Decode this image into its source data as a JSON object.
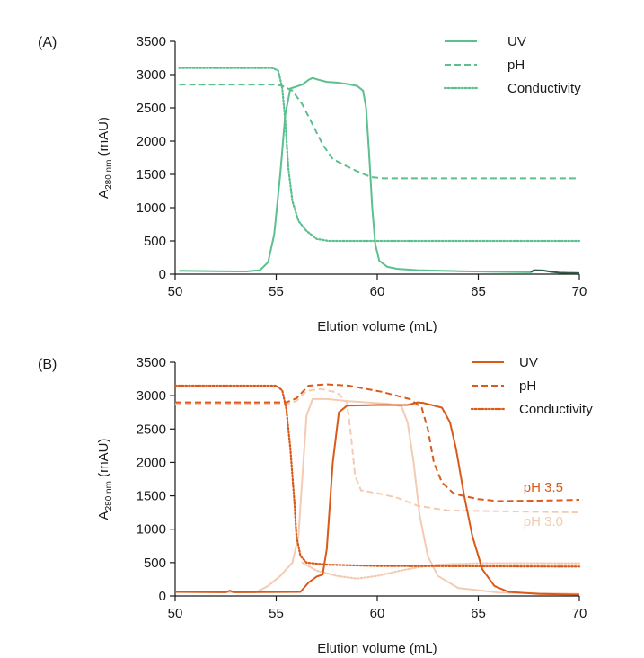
{
  "chart_data": [
    {
      "panel_label": "(A)",
      "type": "line",
      "xlabel": "Elution volume (mL)",
      "ylabel_main": "A",
      "ylabel_sub": "280 nm",
      "ylabel_unit": " (mAU)",
      "xlim": [
        50,
        70
      ],
      "ylim": [
        0,
        3500
      ],
      "xticks": [
        50,
        55,
        60,
        65,
        70
      ],
      "yticks": [
        0,
        500,
        1000,
        1500,
        2000,
        2500,
        3000,
        3500
      ],
      "grid": false,
      "legend": {
        "placement": "top-right",
        "entries": [
          {
            "label": "UV",
            "style": "solid"
          },
          {
            "label": "pH",
            "style": "dashed"
          },
          {
            "label": "Conductivity",
            "style": "dotted"
          }
        ]
      },
      "colors": {
        "main": "#5bbf8e",
        "tail": "#2f5a44"
      },
      "series": [
        {
          "legend": "UV",
          "style": "solid",
          "color": "#5bbf8e",
          "points": [
            [
              50.2,
              50
            ],
            [
              52,
              45
            ],
            [
              53.5,
              40
            ],
            [
              54.2,
              60
            ],
            [
              54.6,
              180
            ],
            [
              54.9,
              600
            ],
            [
              55.2,
              1500
            ],
            [
              55.45,
              2400
            ],
            [
              55.7,
              2790
            ],
            [
              56,
              2820
            ],
            [
              56.3,
              2850
            ],
            [
              56.6,
              2920
            ],
            [
              56.8,
              2950
            ],
            [
              57,
              2930
            ],
            [
              57.5,
              2890
            ],
            [
              58,
              2880
            ],
            [
              58.5,
              2860
            ],
            [
              59,
              2830
            ],
            [
              59.3,
              2760
            ],
            [
              59.45,
              2500
            ],
            [
              59.6,
              1800
            ],
            [
              59.75,
              1000
            ],
            [
              59.9,
              450
            ],
            [
              60.1,
              200
            ],
            [
              60.5,
              110
            ],
            [
              61,
              80
            ],
            [
              62,
              60
            ],
            [
              64,
              45
            ],
            [
              66,
              35
            ],
            [
              67.6,
              28
            ]
          ]
        },
        {
          "legend": "UV",
          "style": "solid",
          "color": "#2f5a44",
          "points": [
            [
              67.6,
              28
            ],
            [
              67.75,
              60
            ],
            [
              68.2,
              55
            ],
            [
              68.6,
              35
            ],
            [
              69,
              22
            ],
            [
              70,
              15
            ]
          ]
        },
        {
          "legend": "pH",
          "style": "dashed",
          "color": "#5bbf8e",
          "points": [
            [
              50.2,
              2850
            ],
            [
              55,
              2850
            ],
            [
              55.3,
              2830
            ],
            [
              55.8,
              2760
            ],
            [
              56.3,
              2550
            ],
            [
              56.8,
              2250
            ],
            [
              57.3,
              1950
            ],
            [
              57.8,
              1730
            ],
            [
              58.5,
              1620
            ],
            [
              59.2,
              1520
            ],
            [
              59.7,
              1460
            ],
            [
              60.3,
              1440
            ],
            [
              70,
              1440
            ]
          ]
        },
        {
          "legend": "Conductivity",
          "style": "dotted",
          "color": "#5bbf8e",
          "points": [
            [
              50.2,
              3100
            ],
            [
              54.8,
              3100
            ],
            [
              55.1,
              3060
            ],
            [
              55.3,
              2800
            ],
            [
              55.45,
              2300
            ],
            [
              55.6,
              1600
            ],
            [
              55.8,
              1100
            ],
            [
              56.1,
              800
            ],
            [
              56.5,
              650
            ],
            [
              57,
              530
            ],
            [
              57.6,
              500
            ],
            [
              70,
              500
            ]
          ]
        }
      ]
    },
    {
      "panel_label": "(B)",
      "type": "line",
      "xlabel": "Elution volume (mL)",
      "ylabel_main": "A",
      "ylabel_sub": "280 nm",
      "ylabel_unit": " (mAU)",
      "xlim": [
        50,
        70
      ],
      "ylim": [
        0,
        3500
      ],
      "xticks": [
        50,
        55,
        60,
        65,
        70
      ],
      "yticks": [
        0,
        500,
        1000,
        1500,
        2000,
        2500,
        3000,
        3500
      ],
      "grid": false,
      "legend": {
        "placement": "top-right",
        "entries": [
          {
            "label": "UV",
            "style": "solid"
          },
          {
            "label": "pH",
            "style": "dashed"
          },
          {
            "label": "Conductivity",
            "style": "dotted"
          }
        ]
      },
      "colors": {
        "dark": "#d95a1a",
        "light": "#f4cbb2"
      },
      "annotations": [
        {
          "text": "pH 3.5",
          "x": 69.2,
          "y": 1560,
          "color": "#d95a1a"
        },
        {
          "text": "pH 3.0",
          "x": 69.2,
          "y": 1050,
          "color": "#f4cbb2"
        }
      ],
      "series": [
        {
          "legend": "UV",
          "style": "solid",
          "color": "#f4cbb2",
          "points": [
            [
              50,
              60
            ],
            [
              54,
              55
            ],
            [
              54.6,
              150
            ],
            [
              55.2,
              300
            ],
            [
              55.8,
              500
            ],
            [
              56.1,
              900
            ],
            [
              56.3,
              1800
            ],
            [
              56.5,
              2700
            ],
            [
              56.8,
              2950
            ],
            [
              57.5,
              2950
            ],
            [
              58.5,
              2920
            ],
            [
              60.5,
              2880
            ],
            [
              61.2,
              2840
            ],
            [
              61.5,
              2600
            ],
            [
              61.8,
              2000
            ],
            [
              62.1,
              1200
            ],
            [
              62.5,
              600
            ],
            [
              63,
              300
            ],
            [
              64,
              120
            ],
            [
              66,
              50
            ],
            [
              70,
              30
            ]
          ]
        },
        {
          "legend": "pH",
          "style": "dashed",
          "color": "#f4cbb2",
          "points": [
            [
              50,
              2880
            ],
            [
              55.6,
              2880
            ],
            [
              56,
              2920
            ],
            [
              56.5,
              3070
            ],
            [
              57.2,
              3100
            ],
            [
              58,
              3050
            ],
            [
              58.5,
              2900
            ],
            [
              58.7,
              2400
            ],
            [
              58.9,
              1800
            ],
            [
              59.2,
              1580
            ],
            [
              60,
              1540
            ],
            [
              61,
              1470
            ],
            [
              62,
              1350
            ],
            [
              63.5,
              1280
            ],
            [
              70,
              1250
            ]
          ]
        },
        {
          "legend": "Conductivity",
          "style": "dotted",
          "color": "#f4cbb2",
          "points": [
            [
              56.3,
              500
            ],
            [
              57,
              380
            ],
            [
              58,
              300
            ],
            [
              59,
              260
            ],
            [
              60,
              300
            ],
            [
              61,
              370
            ],
            [
              62,
              430
            ],
            [
              63,
              470
            ],
            [
              65,
              490
            ],
            [
              70,
              490
            ]
          ]
        },
        {
          "legend": "UV",
          "style": "solid",
          "color": "#d95a1a",
          "points": [
            [
              50,
              60
            ],
            [
              52.5,
              55
            ],
            [
              52.7,
              80
            ],
            [
              52.9,
              55
            ],
            [
              56.2,
              60
            ],
            [
              56.6,
              200
            ],
            [
              57,
              290
            ],
            [
              57.3,
              320
            ],
            [
              57.5,
              700
            ],
            [
              57.8,
              2000
            ],
            [
              58.1,
              2750
            ],
            [
              58.5,
              2850
            ],
            [
              60,
              2860
            ],
            [
              61.5,
              2860
            ],
            [
              62,
              2900
            ],
            [
              62.3,
              2890
            ],
            [
              63.2,
              2820
            ],
            [
              63.6,
              2600
            ],
            [
              63.9,
              2200
            ],
            [
              64.3,
              1500
            ],
            [
              64.7,
              900
            ],
            [
              65.2,
              400
            ],
            [
              65.8,
              150
            ],
            [
              66.5,
              60
            ],
            [
              68,
              30
            ],
            [
              70,
              20
            ]
          ]
        },
        {
          "legend": "pH",
          "style": "dashed",
          "color": "#d95a1a",
          "points": [
            [
              50,
              2900
            ],
            [
              55.5,
              2900
            ],
            [
              56,
              2960
            ],
            [
              56.6,
              3150
            ],
            [
              57.5,
              3170
            ],
            [
              58.6,
              3150
            ],
            [
              60.2,
              3060
            ],
            [
              61.6,
              2950
            ],
            [
              62.2,
              2820
            ],
            [
              62.5,
              2500
            ],
            [
              62.8,
              2000
            ],
            [
              63.2,
              1700
            ],
            [
              63.8,
              1530
            ],
            [
              65,
              1450
            ],
            [
              66,
              1420
            ],
            [
              68.5,
              1430
            ],
            [
              70,
              1440
            ]
          ]
        },
        {
          "legend": "Conductivity",
          "style": "dotted",
          "color": "#d95a1a",
          "points": [
            [
              50,
              3150
            ],
            [
              55,
              3150
            ],
            [
              55.3,
              3080
            ],
            [
              55.5,
              2800
            ],
            [
              55.7,
              2200
            ],
            [
              55.9,
              1400
            ],
            [
              56,
              900
            ],
            [
              56.2,
              600
            ],
            [
              56.5,
              500
            ],
            [
              57.5,
              470
            ],
            [
              60,
              450
            ],
            [
              70,
              440
            ]
          ]
        }
      ]
    }
  ]
}
